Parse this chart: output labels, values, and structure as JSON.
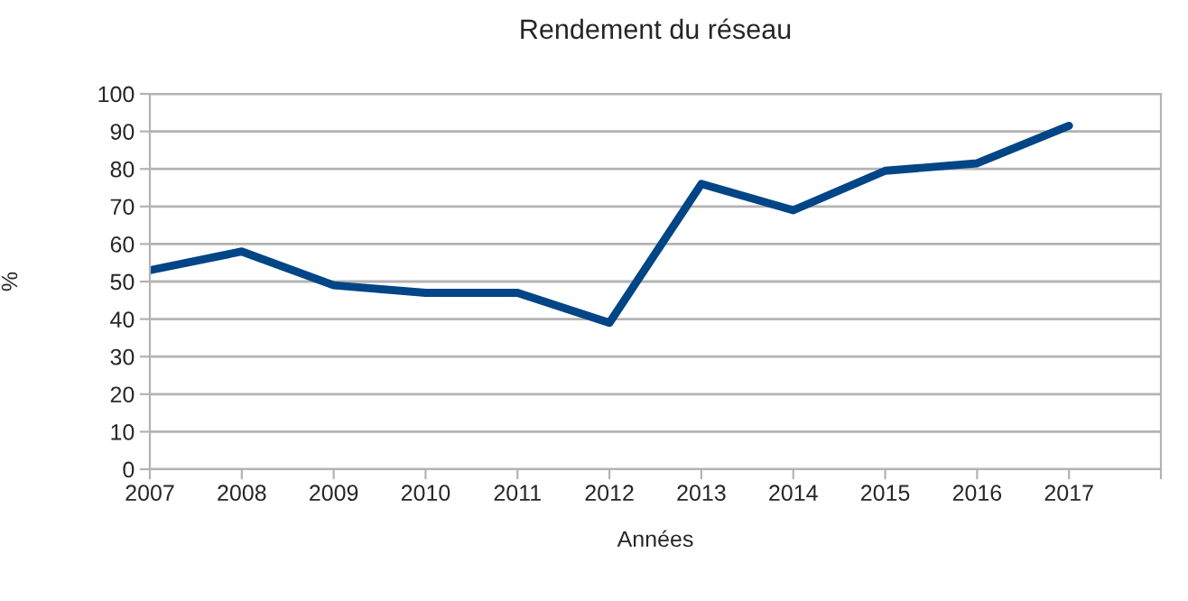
{
  "chart_data": {
    "type": "line",
    "title": "Rendement du réseau",
    "xlabel": "Années",
    "ylabel": "%",
    "x": [
      2007,
      2008,
      2009,
      2010,
      2011,
      2012,
      2013,
      2014,
      2015,
      2016,
      2017
    ],
    "series": [
      {
        "color": "#004586",
        "values": [
          53,
          58,
          49,
          47,
          47,
          39,
          76,
          69,
          79.5,
          81.5,
          91.5
        ]
      }
    ],
    "xlim": [
      2007,
      2018
    ],
    "xticks": [
      2007,
      2008,
      2009,
      2010,
      2011,
      2012,
      2013,
      2014,
      2015,
      2016,
      2017,
      {
        "value": 2018,
        "label": null
      }
    ],
    "ylim": [
      0,
      100
    ],
    "yticks": [
      0,
      10,
      20,
      30,
      40,
      50,
      60,
      70,
      80,
      90,
      100
    ],
    "grid": "y",
    "marker": "none",
    "line_style": "solid"
  }
}
